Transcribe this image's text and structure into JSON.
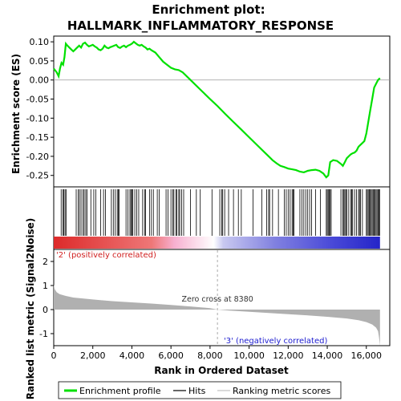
{
  "chart_data": {
    "type": "line",
    "title_line1": "Enrichment plot:",
    "title_line2": "HALLMARK_INFLAMMATORY_RESPONSE",
    "top_panel": {
      "ylabel": "Enrichment score (ES)",
      "ylim": [
        -0.28,
        0.115
      ],
      "yticks": [
        0.1,
        0.05,
        0.0,
        -0.05,
        -0.1,
        -0.15,
        -0.2,
        -0.25
      ],
      "ytick_labels": [
        "0.10",
        "0.05",
        "0.00",
        "-0.05",
        "-0.10",
        "-0.15",
        "-0.20",
        "-0.25"
      ],
      "series": [
        {
          "name": "Enrichment profile",
          "color": "#00e000",
          "x": [
            0,
            150,
            250,
            320,
            400,
            480,
            550,
            620,
            700,
            800,
            900,
            1000,
            1100,
            1200,
            1300,
            1400,
            1500,
            1600,
            1700,
            1800,
            1900,
            2000,
            2100,
            2200,
            2300,
            2400,
            2500,
            2600,
            2700,
            2800,
            2900,
            3000,
            3100,
            3200,
            3300,
            3400,
            3500,
            3600,
            3700,
            3800,
            3900,
            4000,
            4100,
            4200,
            4300,
            4400,
            4500,
            4600,
            4700,
            4800,
            4900,
            5000,
            5200,
            5400,
            5600,
            5800,
            6000,
            6200,
            6400,
            6600,
            6800,
            7000,
            7500,
            8000,
            8380,
            8800,
            9200,
            9600,
            10000,
            10400,
            10800,
            11000,
            11200,
            11400,
            11600,
            11800,
            12000,
            12200,
            12400,
            12600,
            12800,
            13000,
            13200,
            13400,
            13600,
            13800,
            13950,
            14050,
            14150,
            14300,
            14500,
            14700,
            14800,
            14900,
            15000,
            15100,
            15200,
            15300,
            15400,
            15500,
            15600,
            15700,
            15800,
            15900,
            16000,
            16100,
            16200,
            16300,
            16400,
            16500,
            16600,
            16700
          ],
          "y": [
            0.03,
            0.02,
            0.01,
            0.03,
            0.045,
            0.04,
            0.06,
            0.095,
            0.09,
            0.085,
            0.08,
            0.075,
            0.08,
            0.085,
            0.09,
            0.085,
            0.095,
            0.098,
            0.092,
            0.088,
            0.09,
            0.092,
            0.088,
            0.085,
            0.08,
            0.078,
            0.082,
            0.09,
            0.085,
            0.083,
            0.086,
            0.088,
            0.09,
            0.092,
            0.086,
            0.084,
            0.088,
            0.09,
            0.086,
            0.09,
            0.092,
            0.095,
            0.1,
            0.096,
            0.092,
            0.09,
            0.092,
            0.088,
            0.085,
            0.08,
            0.082,
            0.078,
            0.072,
            0.06,
            0.048,
            0.04,
            0.032,
            0.028,
            0.026,
            0.02,
            0.01,
            0.0,
            -0.025,
            -0.05,
            -0.068,
            -0.09,
            -0.11,
            -0.13,
            -0.15,
            -0.17,
            -0.19,
            -0.2,
            -0.21,
            -0.218,
            -0.225,
            -0.228,
            -0.232,
            -0.234,
            -0.236,
            -0.24,
            -0.242,
            -0.238,
            -0.236,
            -0.235,
            -0.238,
            -0.245,
            -0.255,
            -0.25,
            -0.215,
            -0.21,
            -0.212,
            -0.22,
            -0.225,
            -0.215,
            -0.205,
            -0.2,
            -0.195,
            -0.192,
            -0.19,
            -0.185,
            -0.175,
            -0.17,
            -0.165,
            -0.16,
            -0.14,
            -0.11,
            -0.08,
            -0.05,
            -0.02,
            -0.01,
            0.0,
            0.005
          ]
        }
      ]
    },
    "hits": {
      "name": "Hits",
      "positions": [
        380,
        470,
        520,
        580,
        630,
        1150,
        1250,
        1320,
        1400,
        1500,
        1560,
        1640,
        1700,
        1900,
        2050,
        2150,
        2400,
        2550,
        2650,
        2950,
        3050,
        3150,
        3250,
        3300,
        3350,
        3700,
        3800,
        3900,
        3950,
        4000,
        4050,
        4150,
        4250,
        4350,
        4550,
        4650,
        4700,
        4900,
        5000,
        5100,
        5300,
        5400,
        5750,
        5850,
        6000,
        6100,
        6150,
        6250,
        6300,
        6400,
        6450,
        6550,
        6650,
        7000,
        7300,
        7500,
        8100,
        8500,
        8600,
        8650,
        8750,
        8950,
        9200,
        9450,
        9600,
        10200,
        10650,
        10900,
        11000,
        11050,
        11200,
        11500,
        11800,
        11900,
        12000,
        12100,
        12200,
        12250,
        12300,
        12600,
        12700,
        12800,
        12900,
        13000,
        13100,
        13200,
        13400,
        13650,
        13950,
        14000,
        14050,
        14100,
        14150,
        14200,
        14700,
        14800,
        14850,
        14900,
        14950,
        15000,
        15100,
        15200,
        15250,
        15300,
        15400,
        15500,
        15600,
        15650,
        15700,
        15800,
        16000,
        16050,
        16100,
        16150,
        16200,
        16250,
        16300,
        16350,
        16400,
        16450,
        16500,
        16550,
        16600,
        16650,
        16680
      ]
    },
    "rank_panel": {
      "ylabel": "Ranked list metric (Signal2Noise)",
      "xlabel": "Rank in Ordered Dataset",
      "xlim": [
        0,
        17200
      ],
      "ylim": [
        -1.5,
        2.5
      ],
      "xticks": [
        0,
        2000,
        4000,
        6000,
        8000,
        10000,
        12000,
        14000,
        16000
      ],
      "xtick_labels": [
        "0",
        "2,000",
        "4,000",
        "6,000",
        "8,000",
        "10,000",
        "12,000",
        "14,000",
        "16,000"
      ],
      "yticks": [
        2,
        1,
        0,
        -1
      ],
      "ytick_labels": [
        "2",
        "1",
        "0",
        "-1"
      ],
      "series": [
        {
          "name": "Ranking metric scores",
          "color": "#b0b0b0",
          "x": [
            0,
            50,
            150,
            300,
            600,
            1000,
            2000,
            3000,
            4000,
            5000,
            6000,
            7000,
            8000,
            8380,
            9000,
            10000,
            11000,
            12000,
            13000,
            14000,
            15000,
            15600,
            16000,
            16300,
            16500,
            16600,
            16650,
            16700
          ],
          "y": [
            1.05,
            0.85,
            0.72,
            0.64,
            0.57,
            0.5,
            0.42,
            0.35,
            0.3,
            0.25,
            0.19,
            0.13,
            0.06,
            0.0,
            -0.04,
            -0.09,
            -0.14,
            -0.19,
            -0.24,
            -0.3,
            -0.37,
            -0.44,
            -0.52,
            -0.62,
            -0.75,
            -0.9,
            -1.15,
            -1.5
          ]
        }
      ],
      "zero_cross_text": "Zero cross at 8380",
      "zero_cross_x": 8380,
      "pos_label": "'2' (positively correlated)",
      "neg_label": "'3' (negatively correlated)"
    },
    "gradient_bar": {
      "n_genes": 16700,
      "pos_color": "#dd2a2a",
      "neg_color": "#2424c8",
      "mid_color": "#ffffff"
    },
    "legend": [
      {
        "label": "Enrichment profile",
        "color": "#00e000",
        "style": "thick-line"
      },
      {
        "label": "Hits",
        "color": "#000000",
        "style": "line"
      },
      {
        "label": "Ranking metric scores",
        "color": "#c0c0c0",
        "style": "line"
      }
    ]
  }
}
